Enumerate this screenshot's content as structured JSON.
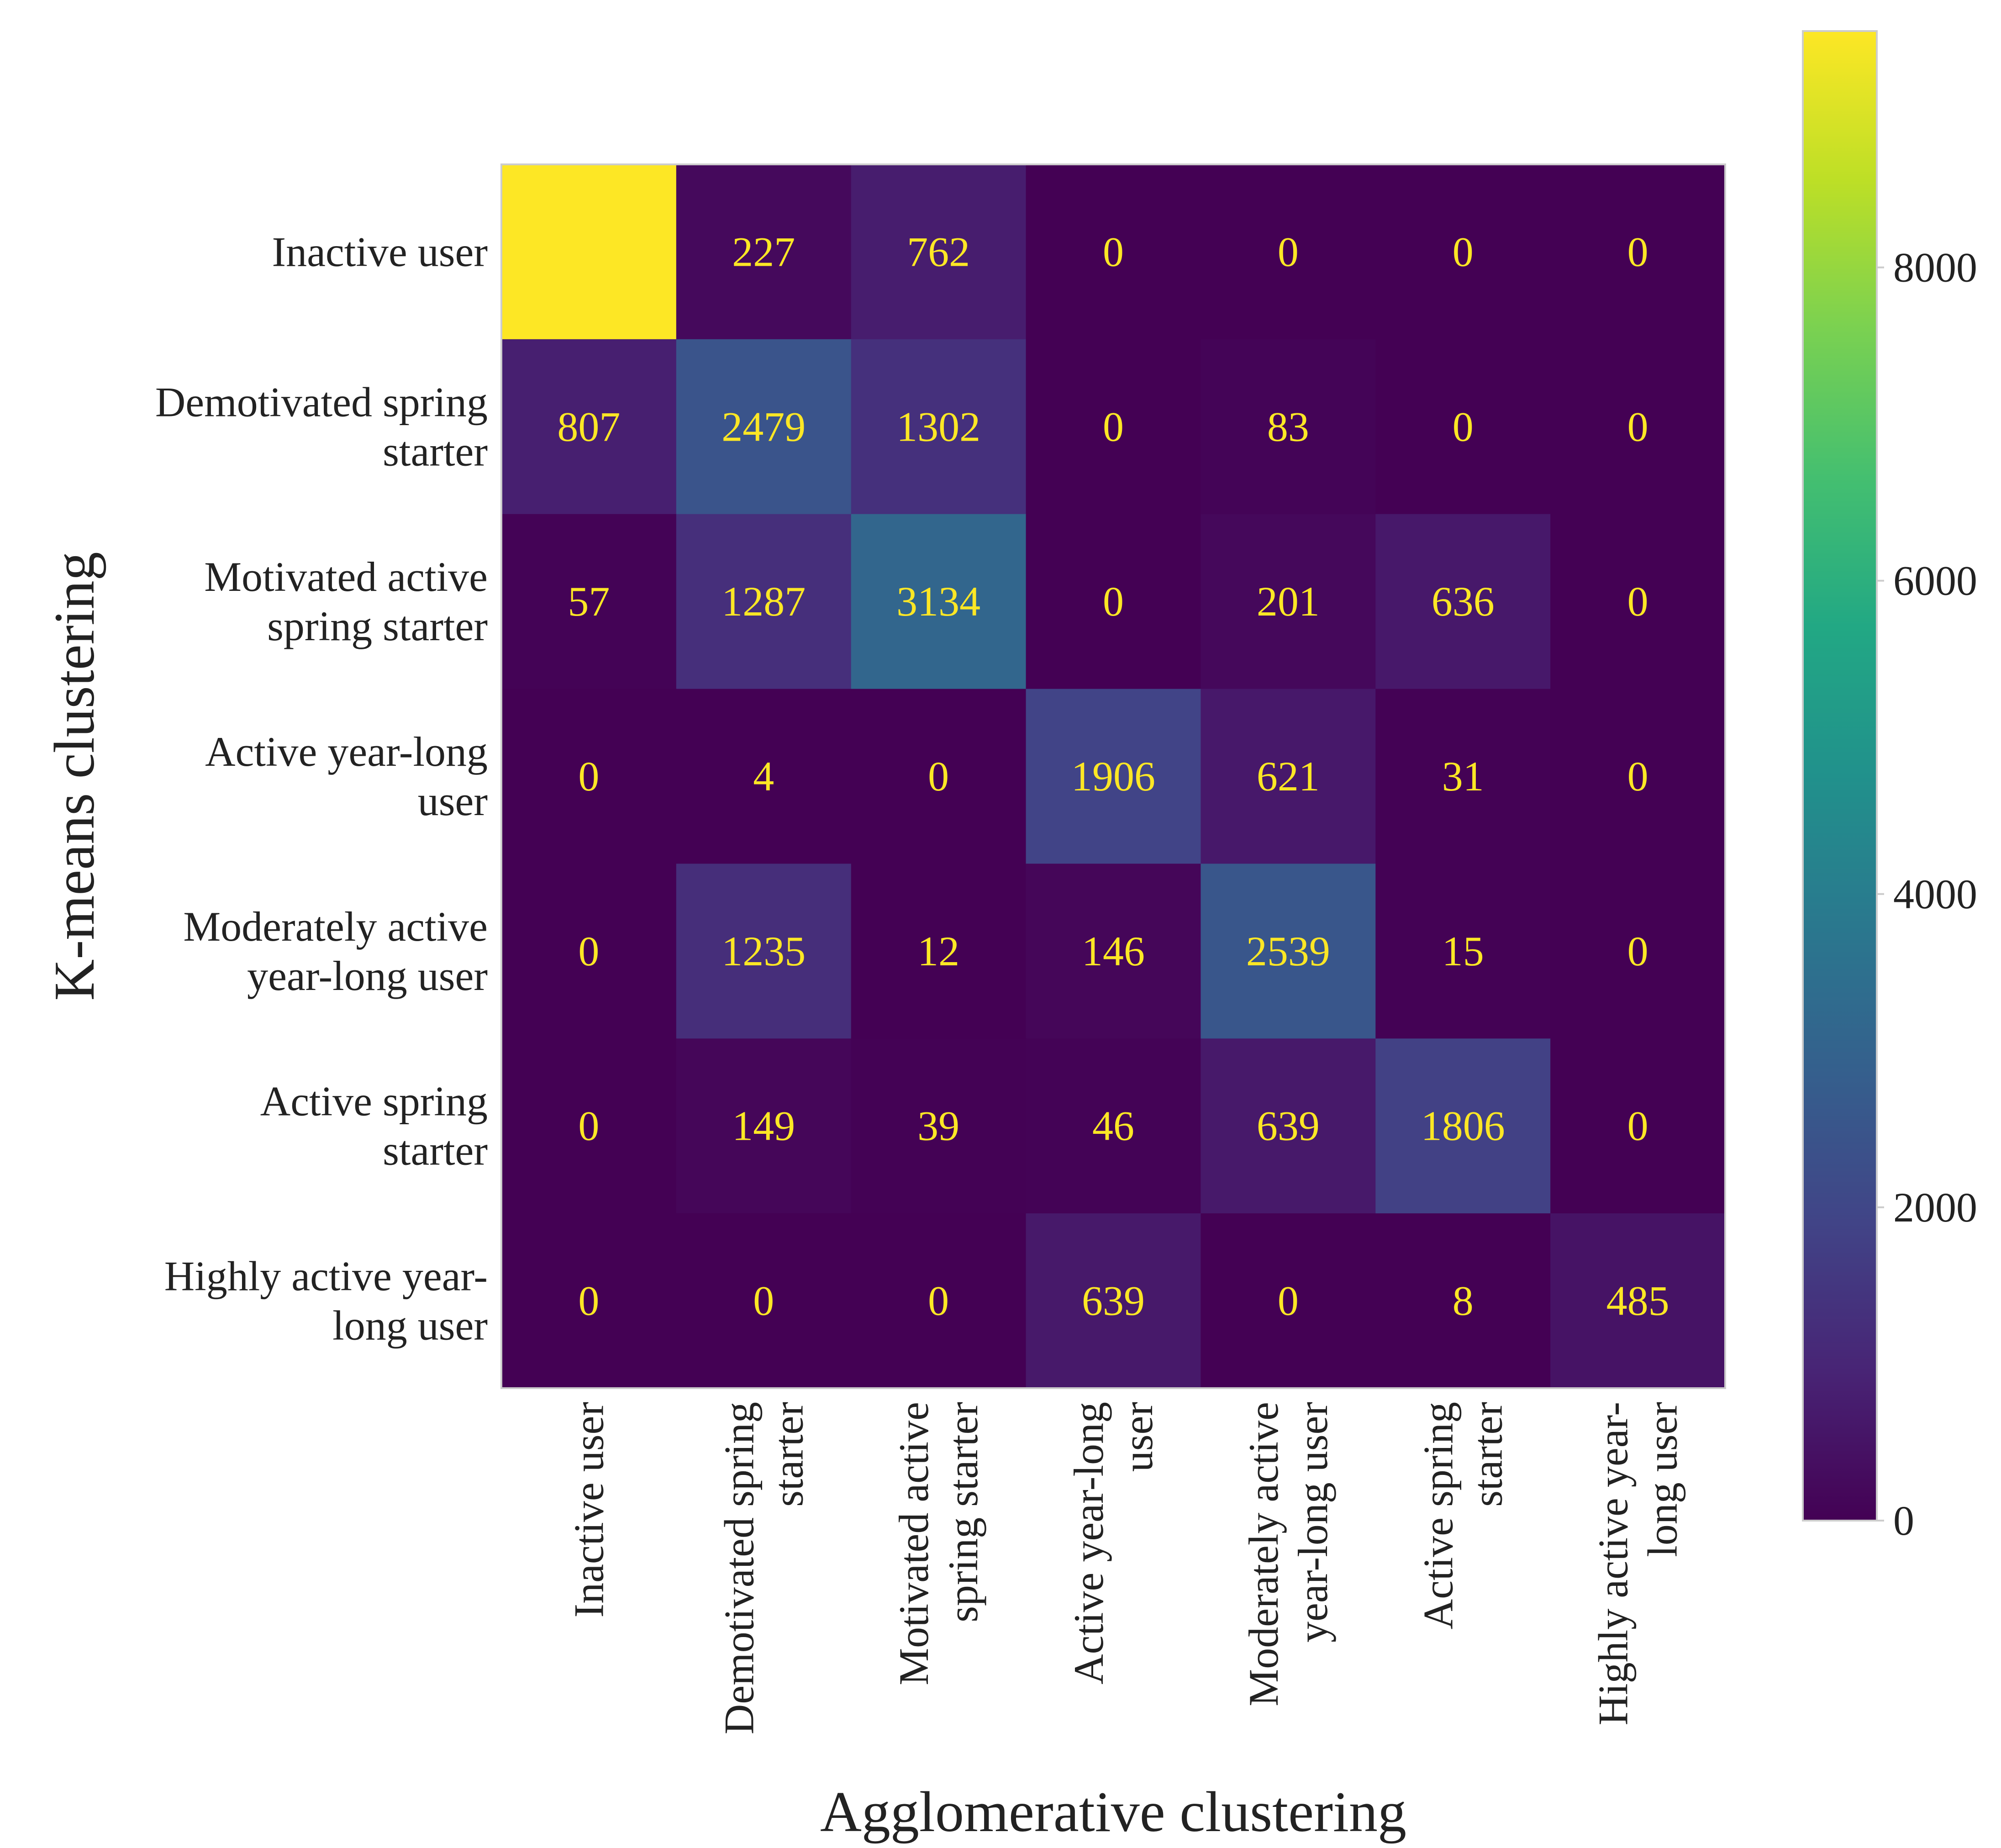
{
  "chart_data": {
    "type": "heatmap",
    "xlabel": "Agglomerative clustering",
    "ylabel": "K-means clustering",
    "x_categories": [
      [
        "Inactive user"
      ],
      [
        "Demotivated spring",
        "starter"
      ],
      [
        "Motivated active",
        "spring starter"
      ],
      [
        "Active year-long",
        "user"
      ],
      [
        "Moderately active",
        "year-long user"
      ],
      [
        "Active spring",
        "starter"
      ],
      [
        "Highly active year-",
        "long user"
      ]
    ],
    "y_categories": [
      [
        "Inactive user"
      ],
      [
        "Demotivated spring",
        "starter"
      ],
      [
        "Motivated active",
        "spring starter"
      ],
      [
        "Active year-long",
        "user"
      ],
      [
        "Moderately active",
        "year-long user"
      ],
      [
        "Active spring",
        "starter"
      ],
      [
        "Highly active year-",
        "long user"
      ]
    ],
    "values": [
      [
        9509,
        227,
        762,
        0,
        0,
        0,
        0
      ],
      [
        807,
        2479,
        1302,
        0,
        83,
        0,
        0
      ],
      [
        57,
        1287,
        3134,
        0,
        201,
        636,
        0
      ],
      [
        0,
        4,
        0,
        1906,
        621,
        31,
        0
      ],
      [
        0,
        1235,
        12,
        146,
        2539,
        15,
        0
      ],
      [
        0,
        149,
        39,
        46,
        639,
        1806,
        0
      ],
      [
        0,
        0,
        0,
        639,
        0,
        8,
        485
      ]
    ],
    "colormap": "viridis",
    "colorbar": {
      "range": [
        0,
        9509
      ],
      "ticks": [
        0,
        2000,
        4000,
        6000,
        8000
      ]
    },
    "annotation_color": "#fde725"
  }
}
